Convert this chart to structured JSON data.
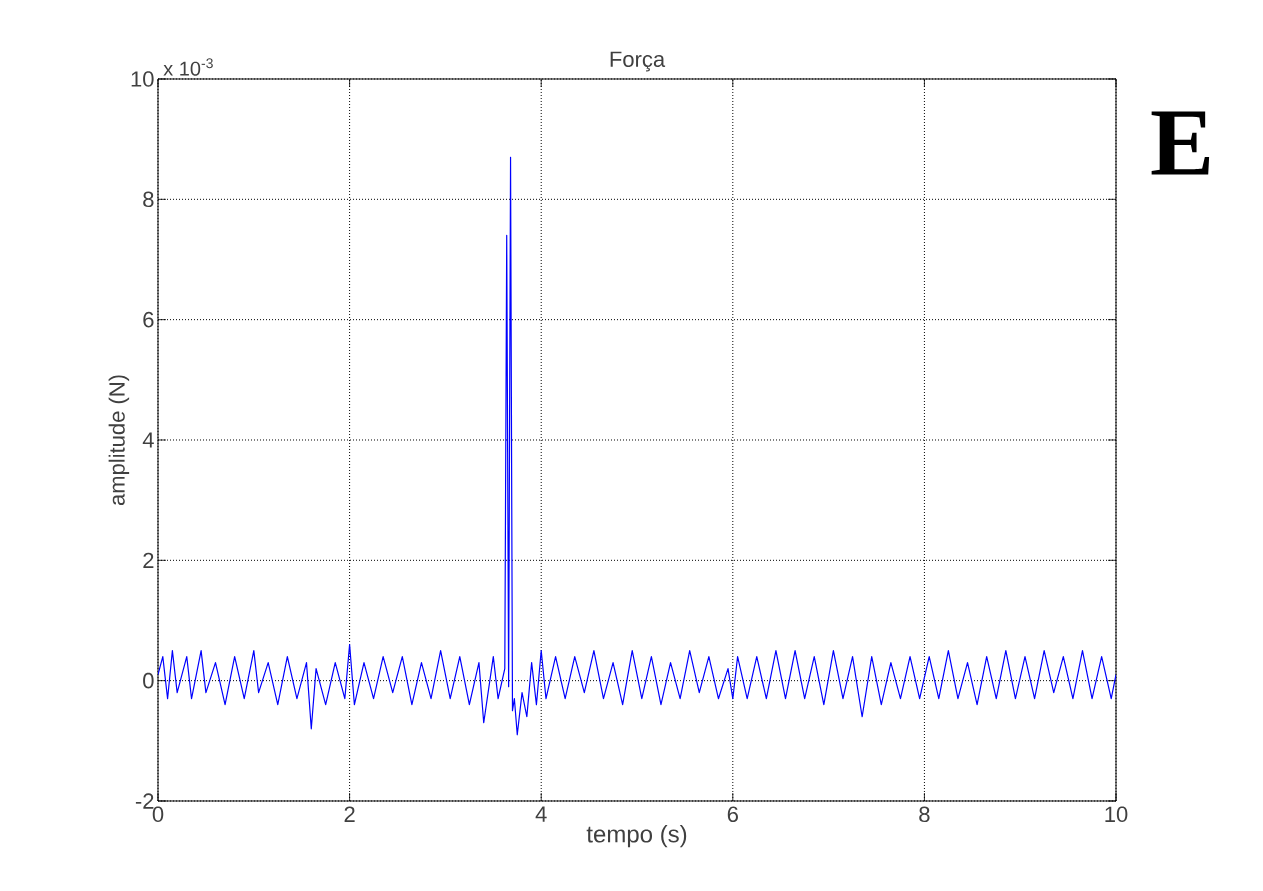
{
  "chart_data": {
    "type": "line",
    "title": "Força",
    "xlabel": "tempo (s)",
    "ylabel": "amplitude (N)",
    "annotations": [
      "x 10$^{-3}$",
      "E"
    ],
    "xlim": [
      0,
      10
    ],
    "xticks": [
      0,
      2,
      4,
      6,
      8,
      10
    ],
    "ylim": [
      -2,
      10
    ],
    "yticks": [
      -2,
      0,
      2,
      4,
      6,
      8,
      10
    ],
    "grid": true,
    "series": [
      {
        "color": "#0000ff",
        "x": [
          0,
          0.05,
          0.1,
          0.15,
          0.2,
          0.3,
          0.35,
          0.45,
          0.5,
          0.6,
          0.7,
          0.8,
          0.9,
          1.0,
          1.05,
          1.15,
          1.25,
          1.35,
          1.45,
          1.55,
          1.6,
          1.65,
          1.75,
          1.85,
          1.95,
          2.0,
          2.05,
          2.15,
          2.25,
          2.35,
          2.45,
          2.55,
          2.65,
          2.75,
          2.85,
          2.95,
          3.05,
          3.15,
          3.25,
          3.35,
          3.4,
          3.5,
          3.55,
          3.62,
          3.64,
          3.66,
          3.68,
          3.7,
          3.72,
          3.75,
          3.8,
          3.85,
          3.9,
          3.95,
          4.0,
          4.05,
          4.15,
          4.25,
          4.35,
          4.45,
          4.55,
          4.65,
          4.75,
          4.85,
          4.95,
          5.05,
          5.15,
          5.25,
          5.35,
          5.45,
          5.55,
          5.65,
          5.75,
          5.85,
          5.95,
          6.0,
          6.05,
          6.15,
          6.25,
          6.35,
          6.45,
          6.55,
          6.65,
          6.75,
          6.85,
          6.95,
          7.05,
          7.15,
          7.25,
          7.35,
          7.45,
          7.55,
          7.65,
          7.75,
          7.85,
          7.95,
          8.05,
          8.15,
          8.25,
          8.35,
          8.45,
          8.55,
          8.65,
          8.75,
          8.85,
          8.95,
          9.05,
          9.15,
          9.25,
          9.35,
          9.45,
          9.55,
          9.65,
          9.75,
          9.85,
          9.95,
          10.0
        ],
        "values": [
          0.1,
          0.4,
          -0.3,
          0.5,
          -0.2,
          0.4,
          -0.3,
          0.5,
          -0.2,
          0.3,
          -0.4,
          0.4,
          -0.3,
          0.5,
          -0.2,
          0.3,
          -0.4,
          0.4,
          -0.3,
          0.3,
          -0.8,
          0.2,
          -0.4,
          0.3,
          -0.3,
          0.6,
          -0.4,
          0.3,
          -0.3,
          0.4,
          -0.2,
          0.4,
          -0.4,
          0.3,
          -0.3,
          0.5,
          -0.3,
          0.4,
          -0.4,
          0.3,
          -0.7,
          0.4,
          -0.3,
          0.2,
          7.4,
          -0.1,
          8.7,
          -0.5,
          -0.3,
          -0.9,
          -0.2,
          -0.6,
          0.3,
          -0.4,
          0.5,
          -0.3,
          0.4,
          -0.3,
          0.4,
          -0.2,
          0.5,
          -0.3,
          0.3,
          -0.4,
          0.5,
          -0.3,
          0.4,
          -0.4,
          0.3,
          -0.3,
          0.5,
          -0.2,
          0.4,
          -0.3,
          0.2,
          -0.3,
          0.4,
          -0.3,
          0.4,
          -0.3,
          0.5,
          -0.3,
          0.5,
          -0.3,
          0.4,
          -0.4,
          0.5,
          -0.3,
          0.4,
          -0.6,
          0.4,
          -0.4,
          0.3,
          -0.3,
          0.4,
          -0.3,
          0.4,
          -0.3,
          0.5,
          -0.3,
          0.3,
          -0.4,
          0.4,
          -0.3,
          0.5,
          -0.3,
          0.4,
          -0.3,
          0.5,
          -0.2,
          0.4,
          -0.3,
          0.5,
          -0.3,
          0.4,
          -0.3,
          0.1
        ]
      }
    ]
  }
}
